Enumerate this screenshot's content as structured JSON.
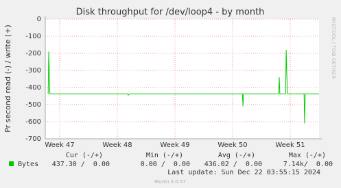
{
  "chart_data": {
    "type": "line",
    "title": "Disk throughput for /dev/loop4 - by month",
    "y_label": "Pr second read (-) / write (+)",
    "side_label": "RRDTOOL / TOBI OETIKER",
    "x": [
      46.8,
      46.81,
      46.83,
      48.18,
      48.19,
      48.21,
      50.17,
      50.18,
      50.19,
      50.8,
      50.81,
      50.82,
      50.92,
      50.93,
      50.95,
      51.24,
      51.25,
      51.26,
      51.5
    ],
    "series": [
      {
        "name": "Bytes",
        "color": "#00cc00",
        "values": [
          -437,
          -190,
          -437,
          -437,
          -445,
          -437,
          -437,
          -510,
          -437,
          -437,
          -340,
          -437,
          -437,
          -180,
          -437,
          -437,
          -610,
          -437,
          -437
        ]
      }
    ],
    "xlim": [
      46.75,
      51.5
    ],
    "xticks": [
      {
        "value": 47,
        "label": "Week 47"
      },
      {
        "value": 48,
        "label": "Week 48"
      },
      {
        "value": 49,
        "label": "Week 49"
      },
      {
        "value": 50,
        "label": "Week 50"
      },
      {
        "value": 51,
        "label": "Week 51"
      }
    ],
    "ylim": [
      -700,
      0
    ],
    "yticks": [
      -700,
      -600,
      -500,
      -400,
      -300,
      -200,
      -100,
      0
    ],
    "grid": true,
    "stats": {
      "headers": [
        "Cur (-/+)",
        "Min (-/+)",
        "Avg (-/+)",
        "Max (-/+)"
      ],
      "rows": [
        [
          "437.30 /  0.00",
          "0.00 /  0.00",
          "436.02 /  0.00",
          "7.14k/  0.00"
        ]
      ]
    },
    "last_update": "Last update: Sun Dec 22 03:55:15 2024",
    "footer": "Munin 2.0.57"
  }
}
